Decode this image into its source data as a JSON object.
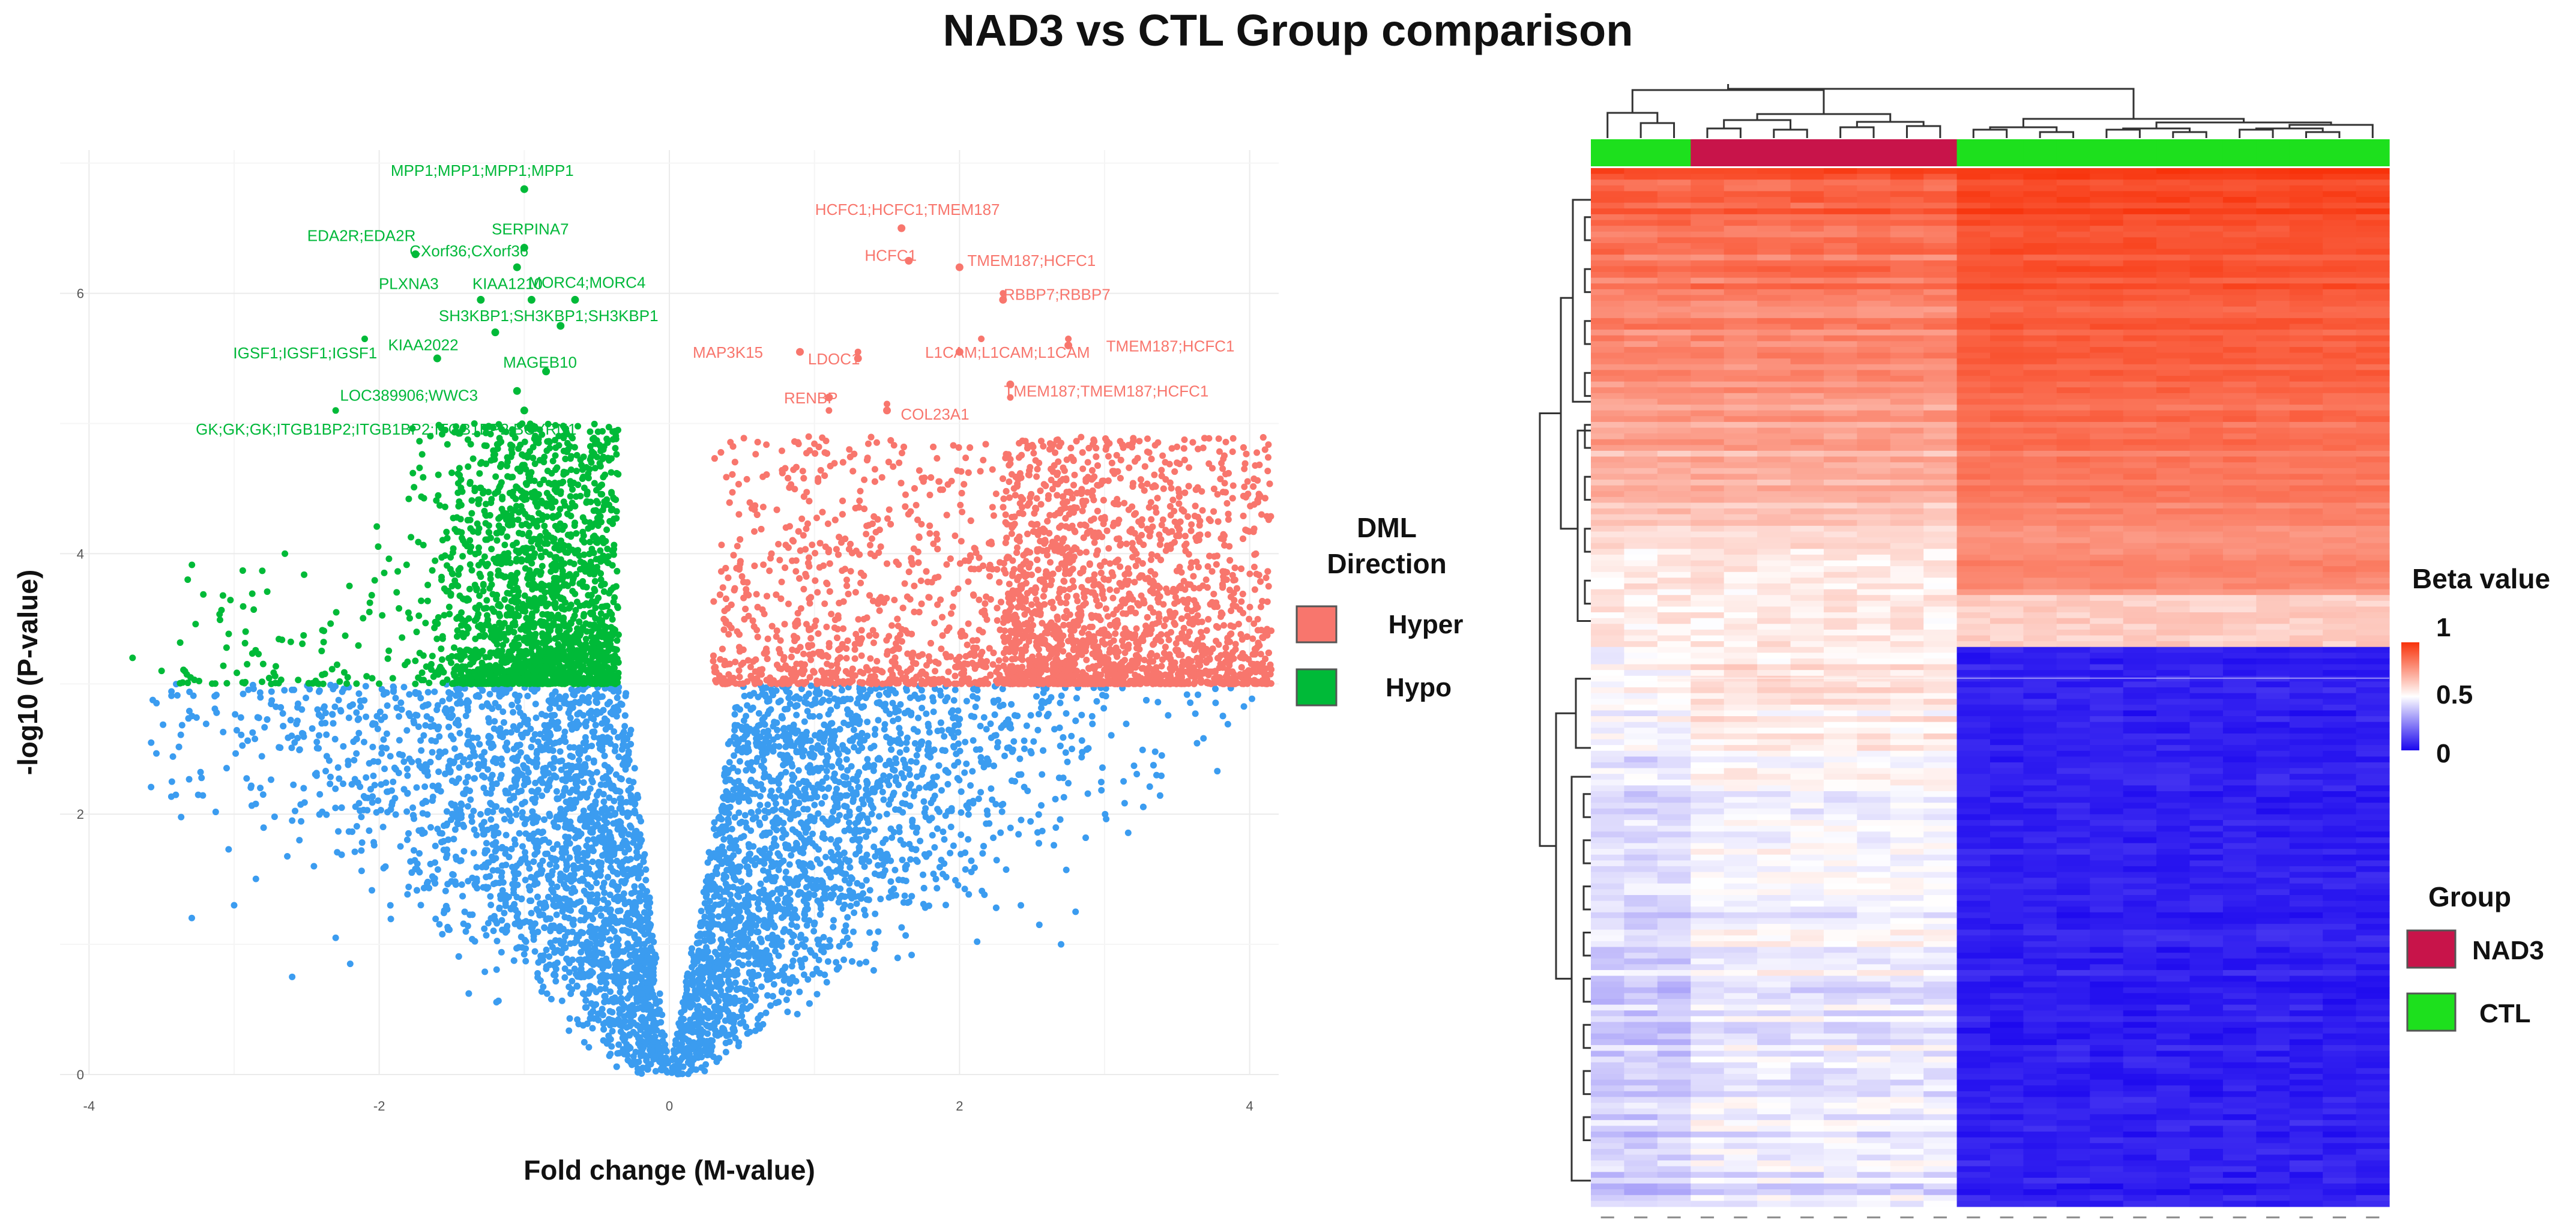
{
  "title": "NAD3 vs CTL Group comparison",
  "colors": {
    "hyper": "#f8766d",
    "hypo": "#00ba38",
    "ns": "#3b9cf0",
    "nad3": "#c8144a",
    "ctl": "#1de01d"
  },
  "volcano": {
    "type": "scatter",
    "xlabel": "Fold change (M-value)",
    "ylabel": "-log10 (P-value)",
    "xlim": [
      -4.2,
      4.2
    ],
    "ylim": [
      0,
      7.1
    ],
    "xticks": [
      "-4",
      "-2",
      "0",
      "2",
      "4"
    ],
    "xtick_values": [
      -4,
      -2,
      0,
      2,
      4
    ],
    "yticks": [
      "0",
      "2",
      "4",
      "6"
    ],
    "ytick_values": [
      0,
      2,
      4,
      6
    ],
    "threshold": 3.0,
    "legend_title": "DML\nDirection",
    "legend_title_lines": [
      "DML",
      "Direction"
    ],
    "legend": [
      {
        "name": "Hyper",
        "color": "#f8766d"
      },
      {
        "name": "Hypo",
        "color": "#00ba38"
      }
    ],
    "hypo_labels": [
      {
        "text": "MPP1;MPP1;MPP1;MPP1",
        "x": -1.0,
        "y": 6.8
      },
      {
        "text": "EDA2R;EDA2R",
        "x": -1.75,
        "y": 6.3
      },
      {
        "text": "SERPINA7",
        "x": -1.0,
        "y": 6.35
      },
      {
        "text": "CXorf36;CXorf36",
        "x": -1.05,
        "y": 6.2
      },
      {
        "text": "MORC4;MORC4",
        "x": -0.65,
        "y": 5.95
      },
      {
        "text": "PLXNA3",
        "x": -1.3,
        "y": 5.95
      },
      {
        "text": "KIAA1210",
        "x": -0.95,
        "y": 5.95
      },
      {
        "text": "SH3KBP1;SH3KBP1;SH3KBP1",
        "x": -0.75,
        "y": 5.75
      },
      {
        "text": "KIAA2022",
        "x": -1.2,
        "y": 5.7
      },
      {
        "text": "MAGEB10",
        "x": -0.85,
        "y": 5.4
      },
      {
        "text": "IGSF1;IGSF1;IGSF1",
        "x": -1.6,
        "y": 5.5
      },
      {
        "text": "LOC389906;WWC3",
        "x": -1.05,
        "y": 5.25
      },
      {
        "text": "GK;GK;GK;ITGB1BP2;ITGB1BP2;ITGB1BP2;BCYRN1",
        "x": -1.0,
        "y": 5.1
      }
    ],
    "hyper_labels": [
      {
        "text": "HCFC1;HCFC1;TMEM187",
        "x": 1.6,
        "y": 6.5
      },
      {
        "text": "HCFC1",
        "x": 1.65,
        "y": 6.25
      },
      {
        "text": "TMEM187;HCFC1",
        "x": 2.0,
        "y": 6.2
      },
      {
        "text": "RBBP7;RBBP7",
        "x": 2.3,
        "y": 5.95
      },
      {
        "text": "MAP3K15",
        "x": 0.9,
        "y": 5.55
      },
      {
        "text": "LDOC1",
        "x": 1.3,
        "y": 5.5
      },
      {
        "text": "L1CAM;L1CAM;L1CAM",
        "x": 2.0,
        "y": 5.55
      },
      {
        "text": "TMEM187;HCFC1",
        "x": 2.75,
        "y": 5.6
      },
      {
        "text": "TMEM187;TMEM187;HCFC1",
        "x": 2.35,
        "y": 5.3
      },
      {
        "text": "RENBP",
        "x": 1.1,
        "y": 5.2
      },
      {
        "text": "COL23A1",
        "x": 1.5,
        "y": 5.1
      }
    ]
  },
  "heatmap": {
    "type": "heatmap",
    "colorbar_title": "Beta value",
    "colorbar_ticks": [
      "1",
      "0.5",
      "0"
    ],
    "colorbar_tick_values": [
      1,
      0.5,
      0
    ],
    "groups_title": "Group",
    "groups": [
      {
        "name": "NAD3",
        "color": "#c8144a"
      },
      {
        "name": "CTL",
        "color": "#1de01d"
      }
    ],
    "column_groups": [
      "CTL",
      "CTL",
      "CTL",
      "NAD3",
      "NAD3",
      "NAD3",
      "NAD3",
      "NAD3",
      "NAD3",
      "NAD3",
      "NAD3",
      "CTL",
      "CTL",
      "CTL",
      "CTL",
      "CTL",
      "CTL",
      "CTL",
      "CTL",
      "CTL",
      "CTL",
      "CTL",
      "CTL",
      "CTL"
    ],
    "column_count": 24,
    "row_blocks": [
      {
        "rows": "top 46%",
        "left_cluster_beta": 0.78,
        "right_cluster_beta": 0.92
      },
      {
        "rows": "bottom 54%",
        "left_cluster_beta": 0.42,
        "right_cluster_beta": 0.04
      }
    ]
  }
}
